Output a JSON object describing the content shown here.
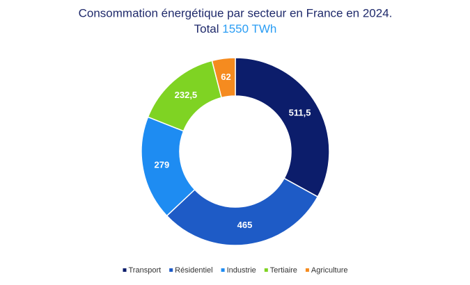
{
  "chart_data": {
    "type": "donut",
    "title": "Consommation énergétique par secteur en France en 2024.",
    "subtitle": "Total",
    "total_label": "1550 TWh",
    "categories": [
      "Transport",
      "Résidentiel",
      "Industrie",
      "Tertiaire",
      "Agriculture"
    ],
    "values": [
      511.5,
      465,
      279,
      232.5,
      62
    ],
    "value_labels": [
      "511,5",
      "465",
      "279",
      "232,5",
      "62"
    ],
    "colors": [
      "#0c1d6b",
      "#1e5bc6",
      "#1e8cf2",
      "#7fd323",
      "#f58b1f"
    ],
    "legend": "bottom"
  }
}
